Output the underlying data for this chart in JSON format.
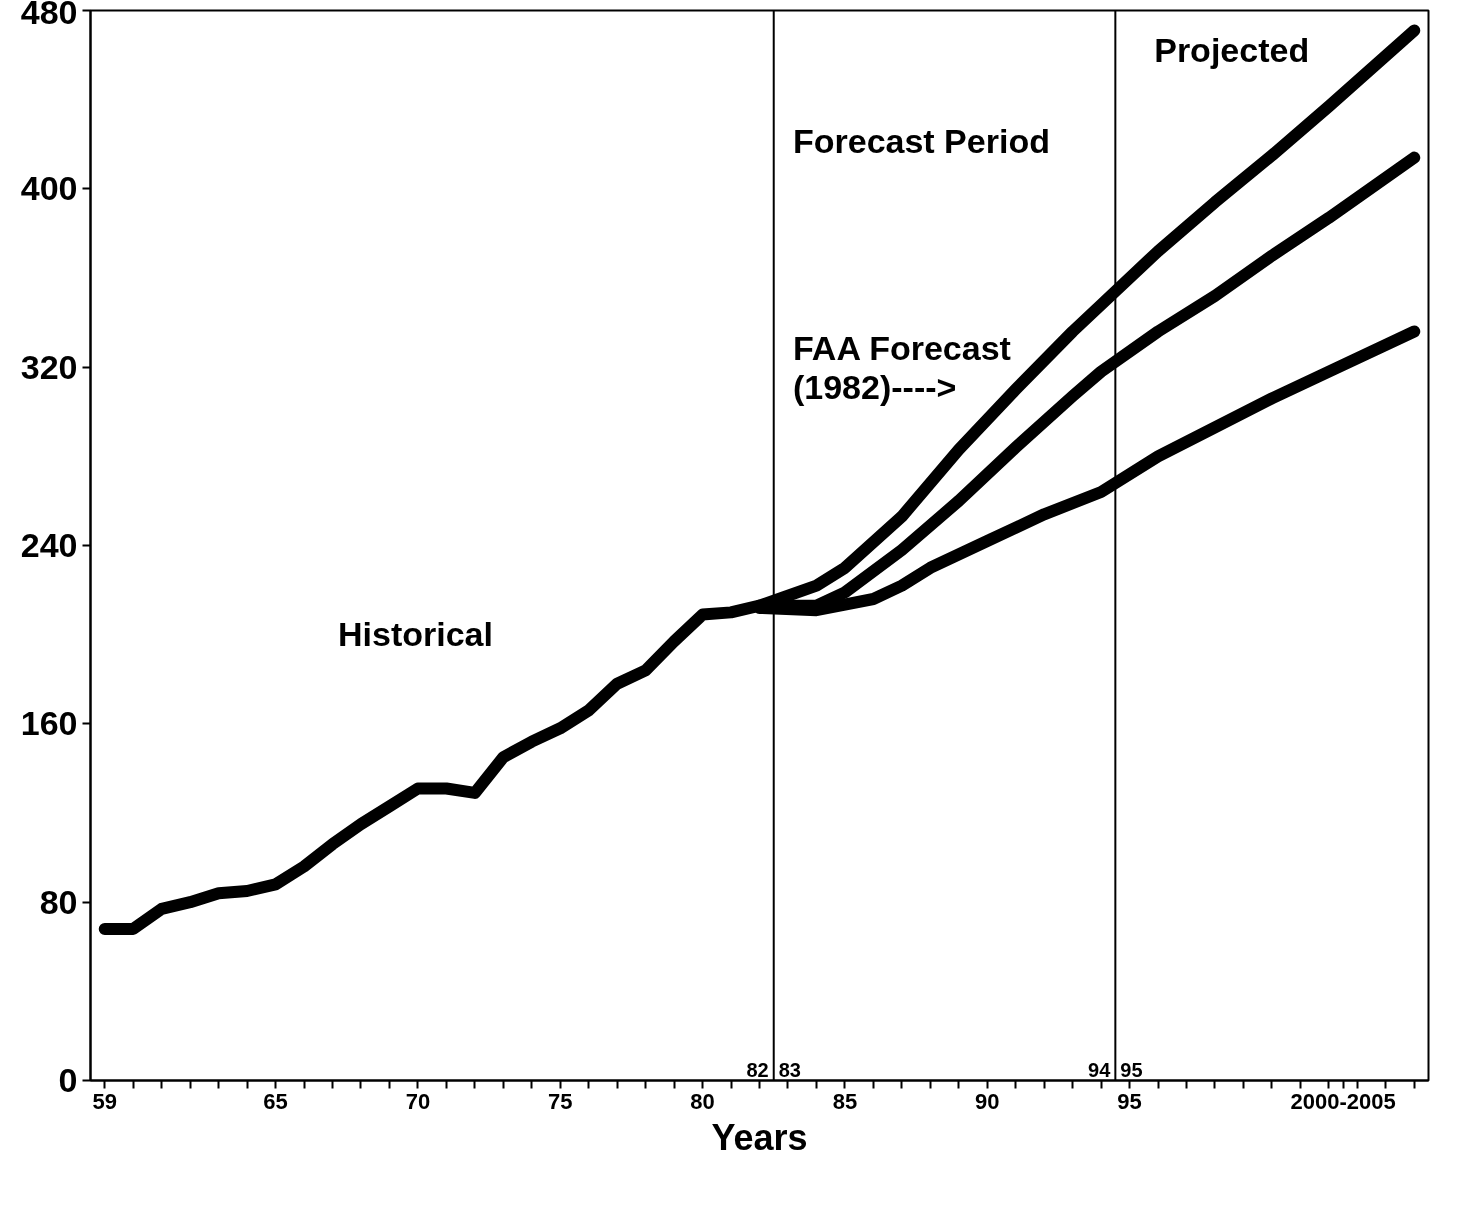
{
  "chart_data": {
    "type": "line",
    "xlabel": "Years",
    "xlim": [
      1958.5,
      2005.5
    ],
    "ylim": [
      0,
      480
    ],
    "yticks": [
      0,
      80,
      160,
      240,
      320,
      400,
      480
    ],
    "xticks": [
      {
        "value": 1959,
        "label": "59"
      },
      {
        "value": 1960,
        "label": null
      },
      {
        "value": 1961,
        "label": null
      },
      {
        "value": 1962,
        "label": null
      },
      {
        "value": 1963,
        "label": null
      },
      {
        "value": 1964,
        "label": null
      },
      {
        "value": 1965,
        "label": "65"
      },
      {
        "value": 1966,
        "label": null
      },
      {
        "value": 1967,
        "label": null
      },
      {
        "value": 1968,
        "label": null
      },
      {
        "value": 1969,
        "label": null
      },
      {
        "value": 1970,
        "label": "70"
      },
      {
        "value": 1971,
        "label": null
      },
      {
        "value": 1972,
        "label": null
      },
      {
        "value": 1973,
        "label": null
      },
      {
        "value": 1974,
        "label": null
      },
      {
        "value": 1975,
        "label": "75"
      },
      {
        "value": 1976,
        "label": null
      },
      {
        "value": 1977,
        "label": null
      },
      {
        "value": 1978,
        "label": null
      },
      {
        "value": 1979,
        "label": null
      },
      {
        "value": 1980,
        "label": "80"
      },
      {
        "value": 1981,
        "label": null
      },
      {
        "value": 1982,
        "label": null
      },
      {
        "value": 1983,
        "label": null
      },
      {
        "value": 1984,
        "label": null
      },
      {
        "value": 1985,
        "label": "85"
      },
      {
        "value": 1986,
        "label": null
      },
      {
        "value": 1987,
        "label": null
      },
      {
        "value": 1988,
        "label": null
      },
      {
        "value": 1989,
        "label": null
      },
      {
        "value": 1990,
        "label": "90"
      },
      {
        "value": 1991,
        "label": null
      },
      {
        "value": 1992,
        "label": null
      },
      {
        "value": 1993,
        "label": null
      },
      {
        "value": 1994,
        "label": null
      },
      {
        "value": 1995,
        "label": "95"
      },
      {
        "value": 1996,
        "label": null
      },
      {
        "value": 1997,
        "label": null
      },
      {
        "value": 1998,
        "label": null
      },
      {
        "value": 1999,
        "label": null
      },
      {
        "value": 2000,
        "label": null
      },
      {
        "value": 2001,
        "label": null
      },
      {
        "value": 2002,
        "label": null
      },
      {
        "value": 2002.5,
        "label": "2000-2005"
      },
      {
        "value": 2003,
        "label": null
      },
      {
        "value": 2004,
        "label": null
      },
      {
        "value": 2005,
        "label": null
      }
    ],
    "series": [
      {
        "color": "#000000",
        "x": [
          1959,
          1960,
          1961,
          1962,
          1963,
          1964,
          1965,
          1966,
          1967,
          1968,
          1969,
          1970,
          1971,
          1972,
          1973,
          1974,
          1975,
          1976,
          1977,
          1978,
          1979,
          1980,
          1981,
          1982,
          1984,
          1985,
          1987,
          1989,
          1991,
          1993,
          1994,
          1996,
          1998,
          2000,
          2002,
          2005
        ],
        "values": [
          68,
          68,
          77,
          80,
          84,
          85,
          88,
          96,
          106,
          115,
          123,
          131,
          131,
          129,
          145,
          152,
          158,
          166,
          178,
          184,
          197,
          209,
          210,
          213,
          213,
          219,
          238,
          260,
          284,
          307,
          318,
          336,
          352,
          370,
          387,
          414
        ]
      },
      {
        "color": "#000000",
        "x": [
          1982,
          1984,
          1985,
          1987,
          1989,
          1991,
          1993,
          1994,
          1996,
          1998,
          2000,
          2002,
          2005
        ],
        "values": [
          213,
          222,
          230,
          253,
          283,
          310,
          336,
          348,
          372,
          394,
          415,
          437,
          471
        ]
      },
      {
        "color": "#000000",
        "x": [
          1982,
          1984,
          1986,
          1987,
          1988,
          1990,
          1992,
          1994,
          1996,
          1998,
          2000,
          2002,
          2005
        ],
        "values": [
          212,
          211,
          216,
          222,
          230,
          242,
          254,
          264,
          280,
          293,
          306,
          318,
          336
        ]
      }
    ],
    "ref_lines": [
      {
        "axis": "x",
        "value": 1982.5,
        "color": "#000000"
      },
      {
        "axis": "x",
        "value": 1994.5,
        "color": "#000000"
      }
    ],
    "annotations": [
      "Historical",
      "Forecast Period",
      "Projected",
      "FAA Forecast\n(1982)---->",
      "82",
      "83",
      "94",
      "95"
    ],
    "grid": false,
    "marker": "none",
    "line_style": "solid"
  }
}
